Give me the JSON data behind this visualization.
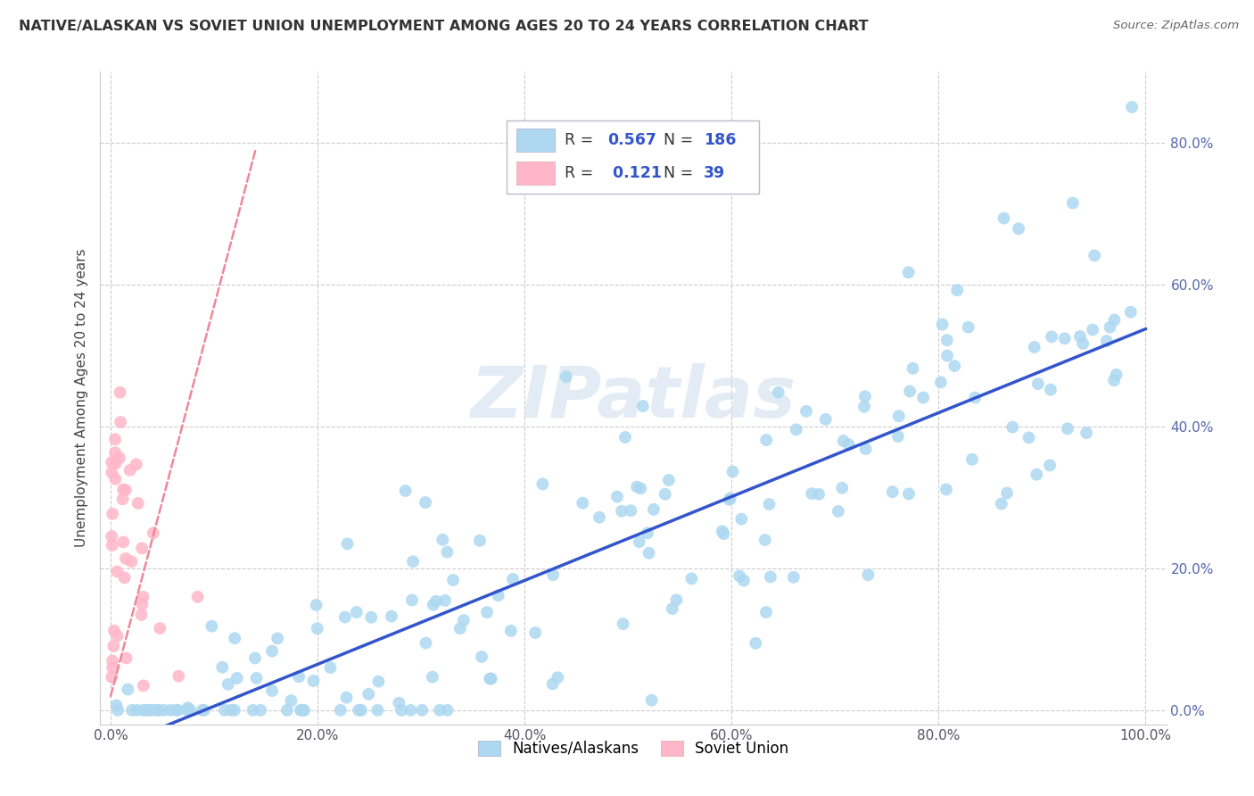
{
  "title": "NATIVE/ALASKAN VS SOVIET UNION UNEMPLOYMENT AMONG AGES 20 TO 24 YEARS CORRELATION CHART",
  "source": "Source: ZipAtlas.com",
  "ylabel": "Unemployment Among Ages 20 to 24 years",
  "xlim": [
    -0.01,
    1.02
  ],
  "ylim": [
    -0.02,
    0.9
  ],
  "xticks": [
    0.0,
    0.2,
    0.4,
    0.6,
    0.8,
    1.0
  ],
  "yticks": [
    0.0,
    0.2,
    0.4,
    0.6,
    0.8
  ],
  "xtick_labels": [
    "0.0%",
    "20.0%",
    "40.0%",
    "60.0%",
    "80.0%",
    "100.0%"
  ],
  "ytick_labels": [
    "0.0%",
    "20.0%",
    "40.0%",
    "60.0%",
    "80.0%"
  ],
  "blue_R": 0.567,
  "blue_N": 186,
  "pink_R": 0.121,
  "pink_N": 39,
  "blue_color": "#add8f0",
  "pink_color": "#ffb6c8",
  "blue_line_color": "#3355cc",
  "pink_line_color": "#ee8899",
  "watermark": "ZIPatlas",
  "legend_labels": [
    "Natives/Alaskans",
    "Soviet Union"
  ],
  "blue_seed": 42,
  "pink_seed": 99
}
